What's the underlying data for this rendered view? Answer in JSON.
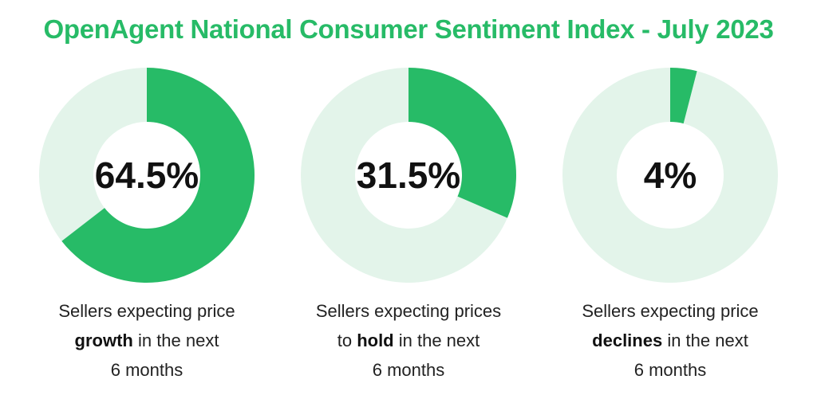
{
  "title": "OpenAgent National Consumer Sentiment Index - July 2023",
  "colors": {
    "accent": "#27bb67",
    "track": "#e3f4ea",
    "text": "#111111"
  },
  "chart_data": [
    {
      "type": "pie",
      "value": 64.5,
      "value_label": "64.5%",
      "caption": {
        "line1": "Sellers expecting price",
        "bold": "growth",
        "line2_rest": " in the next",
        "line3": "6 months"
      }
    },
    {
      "type": "pie",
      "value": 31.5,
      "value_label": "31.5%",
      "caption": {
        "line1": "Sellers expecting prices",
        "line2_pre": "to ",
        "bold": "hold",
        "line2_rest": " in the next",
        "line3": "6 months"
      }
    },
    {
      "type": "pie",
      "value": 4,
      "value_label": "4%",
      "caption": {
        "line1": "Sellers expecting price",
        "bold": "declines",
        "line2_rest": " in the next",
        "line3": "6 months"
      }
    }
  ]
}
